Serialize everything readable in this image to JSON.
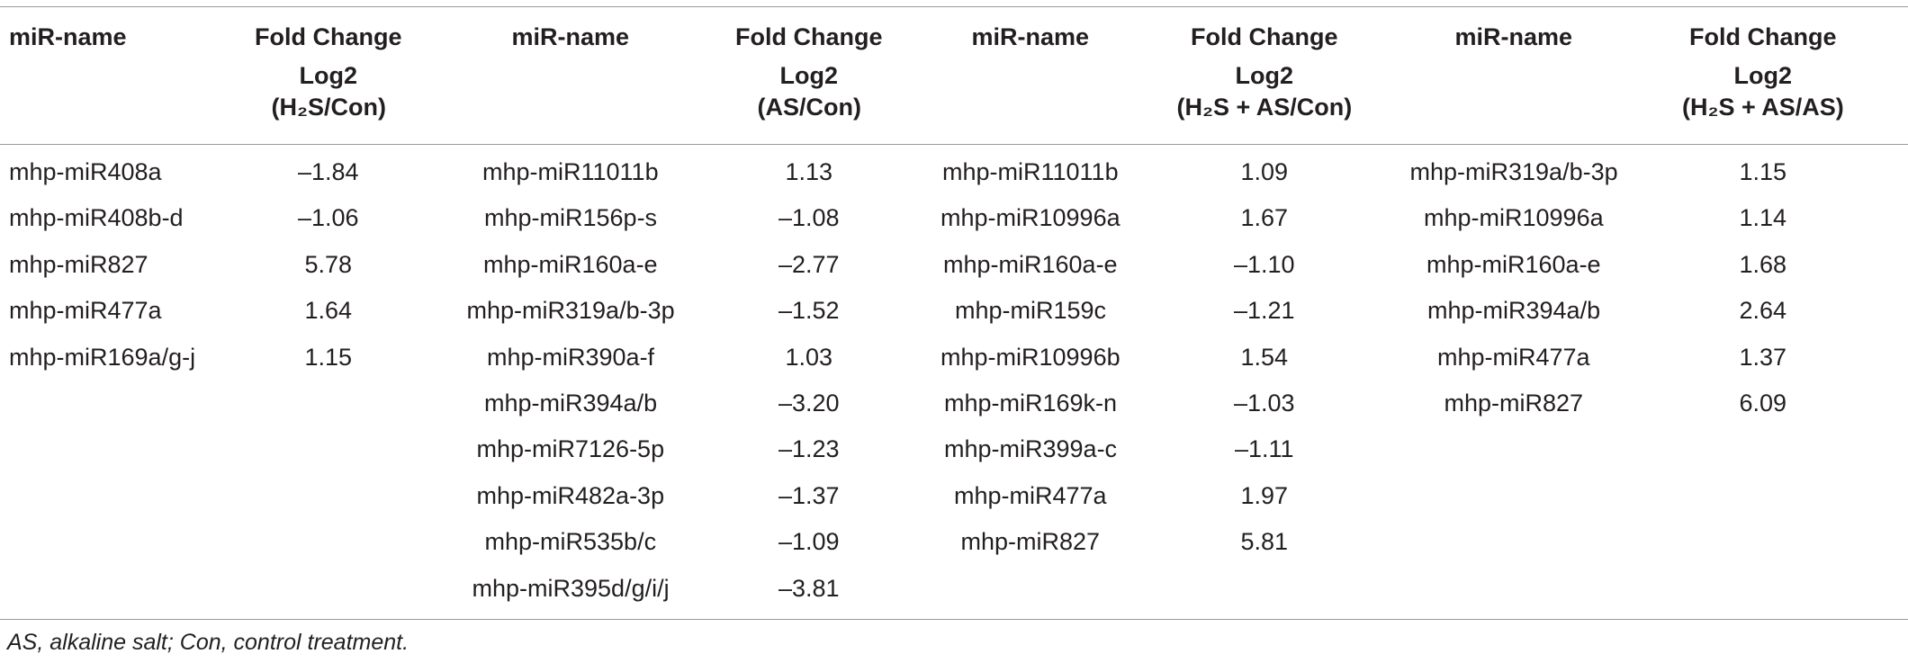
{
  "table": {
    "headers": [
      [
        "miR-name"
      ],
      [
        "Fold Change",
        "Log2",
        "(H₂S/Con)"
      ],
      [
        "miR-name"
      ],
      [
        "Fold Change",
        "Log2",
        "(AS/Con)"
      ],
      [
        "miR-name"
      ],
      [
        "Fold Change",
        "Log2",
        "(H₂S + AS/Con)"
      ],
      [
        "miR-name"
      ],
      [
        "Fold Change",
        "Log2",
        "(H₂S + AS/AS)"
      ]
    ],
    "groups": [
      [
        [
          "mhp-miR408a",
          "–1.84"
        ],
        [
          "mhp-miR408b-d",
          "–1.06"
        ],
        [
          "mhp-miR827",
          "5.78"
        ],
        [
          "mhp-miR477a",
          "1.64"
        ],
        [
          "mhp-miR169a/g-j",
          "1.15"
        ]
      ],
      [
        [
          "mhp-miR11011b",
          "1.13"
        ],
        [
          "mhp-miR156p-s",
          "–1.08"
        ],
        [
          "mhp-miR160a-e",
          "–2.77"
        ],
        [
          "mhp-miR319a/b-3p",
          "–1.52"
        ],
        [
          "mhp-miR390a-f",
          "1.03"
        ],
        [
          "mhp-miR394a/b",
          "–3.20"
        ],
        [
          "mhp-miR7126-5p",
          "–1.23"
        ],
        [
          "mhp-miR482a-3p",
          "–1.37"
        ],
        [
          "mhp-miR535b/c",
          "–1.09"
        ],
        [
          "mhp-miR395d/g/i/j",
          "–3.81"
        ]
      ],
      [
        [
          "mhp-miR11011b",
          "1.09"
        ],
        [
          "mhp-miR10996a",
          "1.67"
        ],
        [
          "mhp-miR160a-e",
          "–1.10"
        ],
        [
          "mhp-miR159c",
          "–1.21"
        ],
        [
          "mhp-miR10996b",
          "1.54"
        ],
        [
          "mhp-miR169k-n",
          "–1.03"
        ],
        [
          "mhp-miR399a-c",
          "–1.11"
        ],
        [
          "mhp-miR477a",
          "1.97"
        ],
        [
          "mhp-miR827",
          "5.81"
        ]
      ],
      [
        [
          "mhp-miR319a/b-3p",
          "1.15"
        ],
        [
          "mhp-miR10996a",
          "1.14"
        ],
        [
          "mhp-miR160a-e",
          "1.68"
        ],
        [
          "mhp-miR394a/b",
          "2.64"
        ],
        [
          "mhp-miR477a",
          "1.37"
        ],
        [
          "mhp-miR827",
          "6.09"
        ]
      ]
    ],
    "footnote": "AS, alkaline salt; Con, control treatment."
  }
}
